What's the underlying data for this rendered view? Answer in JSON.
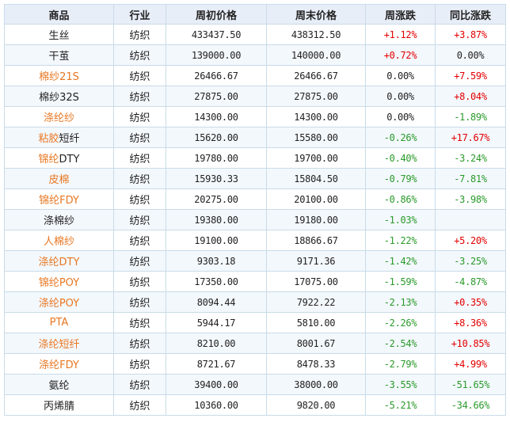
{
  "headers": [
    "商品",
    "行业",
    "周初价格",
    "周末价格",
    "周涨跌",
    "同比涨跌"
  ],
  "rows": [
    {
      "name": "生丝",
      "link": "",
      "plain": "生丝",
      "industry": "纺织",
      "open": "433437.50",
      "close": "438312.50",
      "week": "+1.12%",
      "yoy": "+3.87%"
    },
    {
      "name": "干茧",
      "link": "",
      "plain": "干茧",
      "industry": "纺织",
      "open": "139000.00",
      "close": "140000.00",
      "week": "+0.72%",
      "yoy": "0.00%"
    },
    {
      "name": "棉纱21S",
      "link": "棉纱21S",
      "plain": "",
      "industry": "纺织",
      "open": "26466.67",
      "close": "26466.67",
      "week": "0.00%",
      "yoy": "+7.59%"
    },
    {
      "name": "棉纱32S",
      "link": "",
      "plain": "棉纱32S",
      "industry": "纺织",
      "open": "27875.00",
      "close": "27875.00",
      "week": "0.00%",
      "yoy": "+8.04%"
    },
    {
      "name": "涤纶纱",
      "link": "涤纶纱",
      "plain": "",
      "industry": "纺织",
      "open": "14300.00",
      "close": "14300.00",
      "week": "0.00%",
      "yoy": "-1.89%"
    },
    {
      "name": "粘胶短纤",
      "link": "粘胶",
      "plain": "短纤",
      "industry": "纺织",
      "open": "15620.00",
      "close": "15580.00",
      "week": "-0.26%",
      "yoy": "+17.67%"
    },
    {
      "name": "锦纶DTY",
      "link": "锦纶",
      "plain": "DTY",
      "industry": "纺织",
      "open": "19780.00",
      "close": "19700.00",
      "week": "-0.40%",
      "yoy": "-3.24%"
    },
    {
      "name": "皮棉",
      "link": "皮棉",
      "plain": "",
      "industry": "纺织",
      "open": "15930.33",
      "close": "15804.50",
      "week": "-0.79%",
      "yoy": "-7.81%"
    },
    {
      "name": "锦纶FDY",
      "link": "锦纶FDY",
      "plain": "",
      "industry": "纺织",
      "open": "20275.00",
      "close": "20100.00",
      "week": "-0.86%",
      "yoy": "-3.98%"
    },
    {
      "name": "涤棉纱",
      "link": "",
      "plain": "涤棉纱",
      "industry": "纺织",
      "open": "19380.00",
      "close": "19180.00",
      "week": "-1.03%",
      "yoy": ""
    },
    {
      "name": "人棉纱",
      "link": "人棉纱",
      "plain": "",
      "industry": "纺织",
      "open": "19100.00",
      "close": "18866.67",
      "week": "-1.22%",
      "yoy": "+5.20%"
    },
    {
      "name": "涤纶DTY",
      "link": "涤纶DTY",
      "plain": "",
      "industry": "纺织",
      "open": "9303.18",
      "close": "9171.36",
      "week": "-1.42%",
      "yoy": "-3.25%"
    },
    {
      "name": "锦纶POY",
      "link": "锦纶POY",
      "plain": "",
      "industry": "纺织",
      "open": "17350.00",
      "close": "17075.00",
      "week": "-1.59%",
      "yoy": "-4.87%"
    },
    {
      "name": "涤纶POY",
      "link": "涤纶POY",
      "plain": "",
      "industry": "纺织",
      "open": "8094.44",
      "close": "7922.22",
      "week": "-2.13%",
      "yoy": "+0.35%"
    },
    {
      "name": "PTA",
      "link": "PTA",
      "plain": "",
      "industry": "纺织",
      "open": "5944.17",
      "close": "5810.00",
      "week": "-2.26%",
      "yoy": "+8.36%"
    },
    {
      "name": "涤纶短纤",
      "link": "涤纶短纤",
      "plain": "",
      "industry": "纺织",
      "open": "8210.00",
      "close": "8001.67",
      "week": "-2.54%",
      "yoy": "+10.85%"
    },
    {
      "name": "涤纶FDY",
      "link": "涤纶FDY",
      "plain": "",
      "industry": "纺织",
      "open": "8721.67",
      "close": "8478.33",
      "week": "-2.79%",
      "yoy": "+4.99%"
    },
    {
      "name": "氨纶",
      "link": "",
      "plain": "氨纶",
      "industry": "纺织",
      "open": "39400.00",
      "close": "38000.00",
      "week": "-3.55%",
      "yoy": "-51.65%"
    },
    {
      "name": "丙烯腈",
      "link": "",
      "plain": "丙烯腈",
      "industry": "纺织",
      "open": "10360.00",
      "close": "9820.00",
      "week": "-5.21%",
      "yoy": "-34.66%"
    }
  ],
  "colors": {
    "up": "#e30000",
    "down": "#2a9a2a",
    "link": "#e87722",
    "header_bg": "#e8eef8",
    "border": "#c9dbe8"
  }
}
